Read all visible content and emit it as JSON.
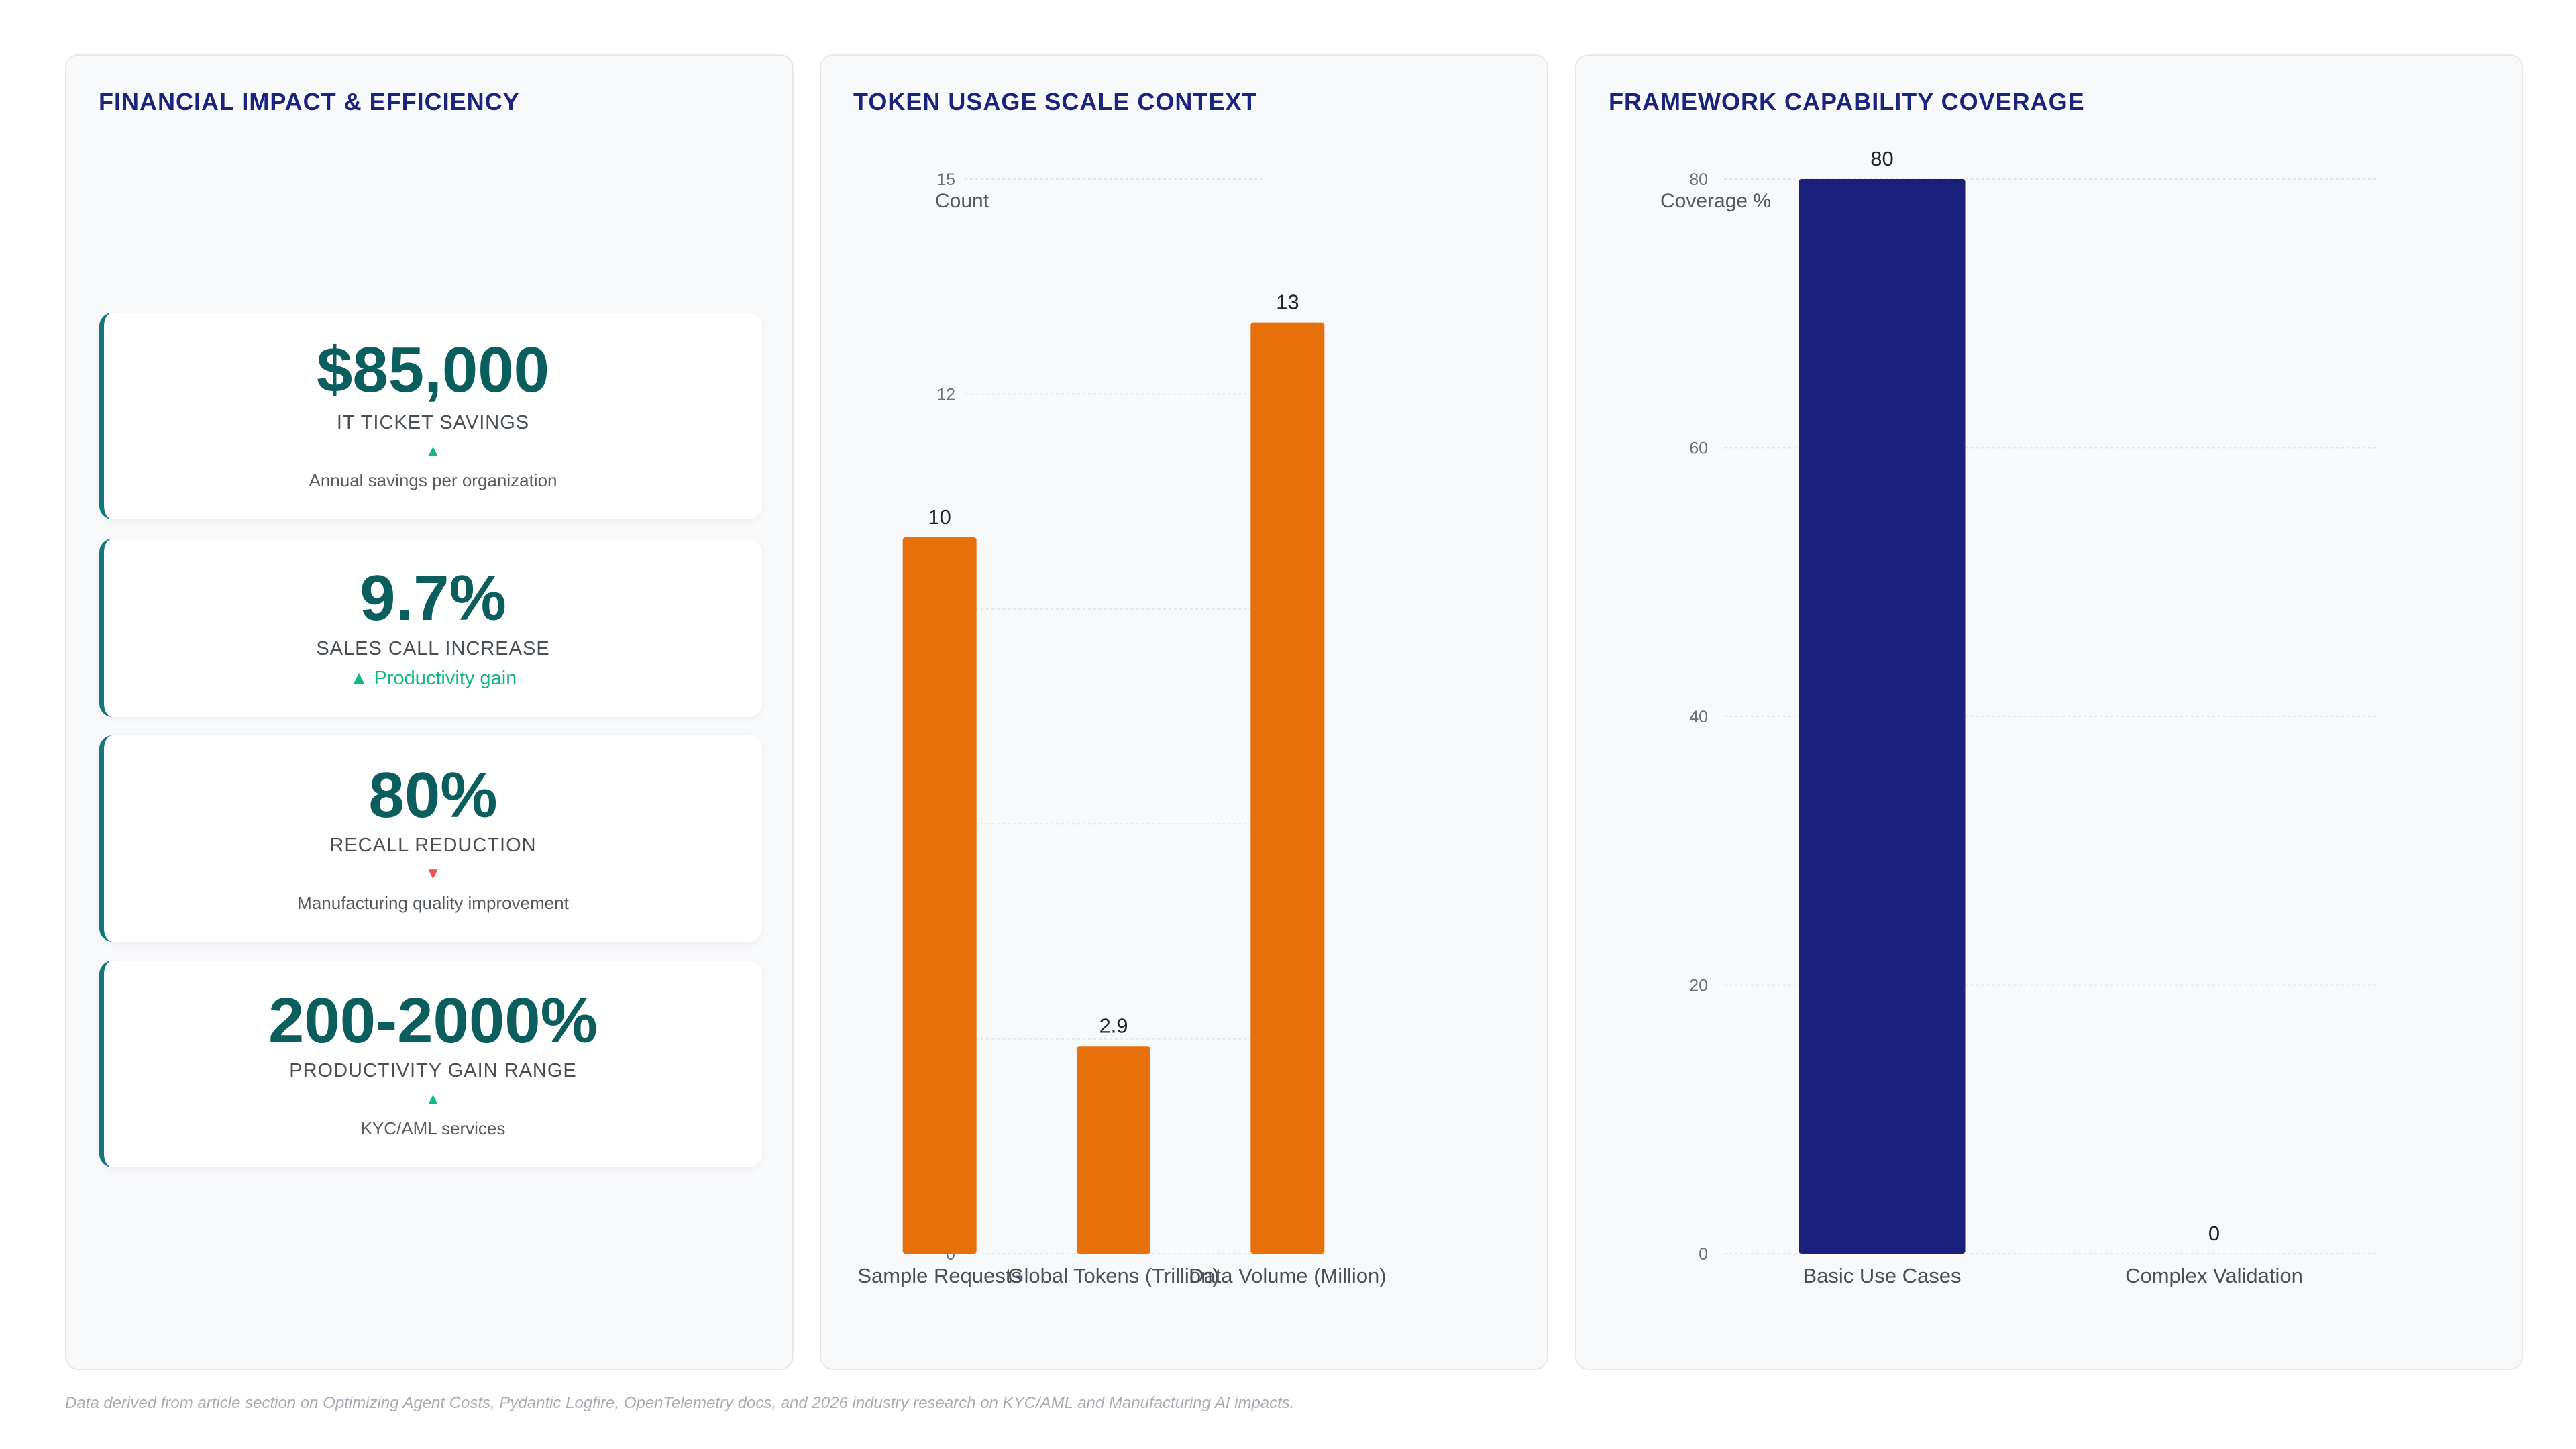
{
  "colors": {
    "title": "#1a237e",
    "kpi_value": "#0b5e5e",
    "kpi_border": "#11777a",
    "up_arrow": "#10b981",
    "down_arrow": "#ef5350",
    "token_bar": "#e8700a",
    "coverage_bar": "#1a1f7a"
  },
  "financial": {
    "title": "FINANCIAL IMPACT & EFFICIENCY",
    "kpis": [
      {
        "value": "$85,000",
        "label": "IT TICKET SAVINGS",
        "trend": "up",
        "arrow": "▲",
        "description": "Annual savings per organization"
      },
      {
        "value": "9.7%",
        "label": "SALES CALL INCREASE",
        "trend": "up",
        "inline": "▲ Productivity gain"
      },
      {
        "value": "80%",
        "label": "RECALL REDUCTION",
        "trend": "down",
        "arrow": "▼",
        "description": "Manufacturing quality improvement"
      },
      {
        "value": "200-2000%",
        "label": "PRODUCTIVITY GAIN RANGE",
        "trend": "up",
        "arrow": "▲",
        "description": "KYC/AML services"
      }
    ]
  },
  "chart_data": [
    {
      "type": "bar",
      "title": "TOKEN USAGE SCALE CONTEXT",
      "ylabel": "Count",
      "xlabel": "",
      "categories": [
        "Sample Requests",
        "Global Tokens (Trillion)",
        "Data Volume (Million)"
      ],
      "values": [
        10,
        2.9,
        13
      ],
      "ylim": [
        0,
        15
      ],
      "yticks": [
        0,
        3,
        6,
        9,
        12,
        15
      ],
      "data_labels": [
        "10",
        "2.9",
        "13"
      ],
      "grid": true,
      "legend": "none",
      "color": "#e8700a"
    },
    {
      "type": "bar",
      "title": "FRAMEWORK CAPABILITY COVERAGE",
      "ylabel": "Coverage %",
      "xlabel": "",
      "categories": [
        "Basic Use Cases",
        "Complex Validation"
      ],
      "values": [
        80,
        0
      ],
      "ylim": [
        0,
        80
      ],
      "yticks": [
        0,
        20,
        40,
        60,
        80
      ],
      "data_labels": [
        "80",
        "0"
      ],
      "grid": true,
      "legend": "none",
      "color": "#1a1f7a"
    }
  ],
  "footnote": "Data derived from article section on Optimizing Agent Costs, Pydantic Logfire, OpenTelemetry docs, and 2026 industry research on KYC/AML and Manufacturing AI impacts."
}
